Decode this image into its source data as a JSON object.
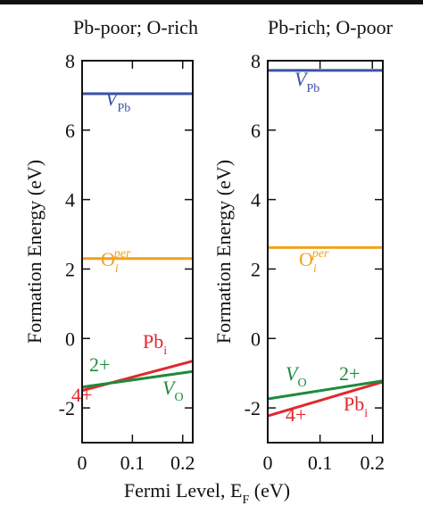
{
  "chart_data": [
    {
      "type": "line",
      "title": "Pb-poor; O-rich",
      "ylabel": "Formation Energy (eV)",
      "x": [
        0,
        0.22
      ],
      "xlim": [
        0,
        0.22
      ],
      "xticks": [
        0,
        0.1,
        0.2
      ],
      "ylim": [
        -3,
        8
      ],
      "yticks": [
        -2,
        0,
        2,
        4,
        6,
        8
      ],
      "series": [
        {
          "label": {
            "main": "V",
            "sub": "Pb"
          },
          "color": "#3a52a8",
          "values": [
            7.05,
            7.05
          ]
        },
        {
          "label": {
            "main": "O",
            "sub": "i",
            "sup": "per"
          },
          "color": "#f0a21e",
          "values": [
            2.3,
            2.3
          ]
        },
        {
          "label": {
            "main": "Pb",
            "sub": "i"
          },
          "charge": "4+",
          "color": "#e0282e",
          "values": [
            -1.5,
            -0.65
          ]
        },
        {
          "label": {
            "main": "V",
            "sub": "O"
          },
          "charge": "2+",
          "color": "#1e8a3c",
          "values": [
            -1.4,
            -0.95
          ]
        }
      ]
    },
    {
      "type": "line",
      "title": "Pb-rich; O-poor",
      "ylabel": "Formation Energy (eV)",
      "x": [
        0,
        0.22
      ],
      "xlim": [
        0,
        0.22
      ],
      "xticks": [
        0,
        0.1,
        0.2
      ],
      "ylim": [
        -3,
        8
      ],
      "yticks": [
        -2,
        0,
        2,
        4,
        6,
        8
      ],
      "series": [
        {
          "label": {
            "main": "V",
            "sub": "Pb"
          },
          "color": "#3a52a8",
          "values": [
            7.72,
            7.72
          ]
        },
        {
          "label": {
            "main": "O",
            "sub": "i",
            "sup": "per"
          },
          "color": "#f0a21e",
          "values": [
            2.62,
            2.62
          ]
        },
        {
          "label": {
            "main": "Pb",
            "sub": "i"
          },
          "charge": "4+",
          "color": "#e0282e",
          "values": [
            -2.23,
            -1.25
          ]
        },
        {
          "label": {
            "main": "V",
            "sub": "O"
          },
          "charge": "2+",
          "color": "#1e8a3c",
          "values": [
            -1.74,
            -1.22
          ]
        }
      ]
    }
  ],
  "xlabel": {
    "main": "Fermi Level, E",
    "sub": "F",
    "tail": " (eV)"
  }
}
